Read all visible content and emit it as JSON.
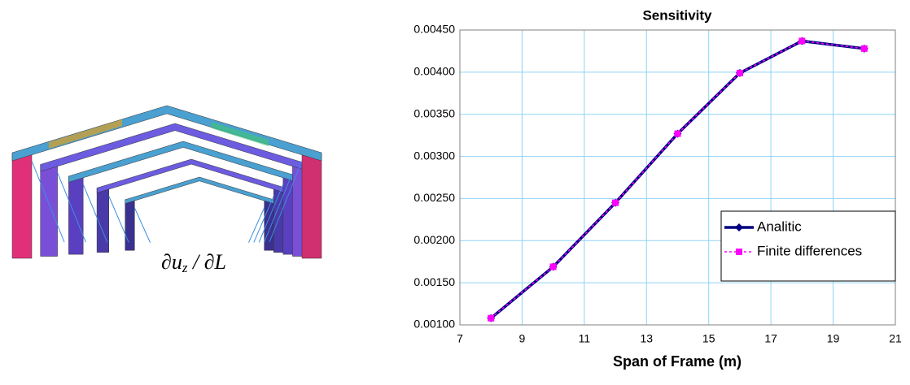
{
  "formula": {
    "main": "∂u",
    "subscript": "z",
    "rest": " / ∂L"
  },
  "chart_data": {
    "type": "line",
    "title": "Sensitivity",
    "x_label": "Span of Frame (m)",
    "x": [
      8,
      10,
      12,
      14,
      16,
      18,
      20
    ],
    "series": [
      {
        "name": "Analitic",
        "color": "#000080",
        "values": [
          0.00108,
          0.00169,
          0.00245,
          0.00327,
          0.00399,
          0.00437,
          0.00428
        ]
      },
      {
        "name": "Finite differences",
        "color": "#ff00ff",
        "values": [
          0.00108,
          0.00169,
          0.00245,
          0.00327,
          0.00399,
          0.00437,
          0.00428
        ]
      }
    ],
    "xlim": [
      7,
      21
    ],
    "xticks": [
      7,
      9,
      11,
      13,
      15,
      17,
      19,
      21
    ],
    "ylim": [
      0.001,
      0.0045
    ],
    "yticks": [
      {
        "value": 0.001,
        "label": "0.00100"
      },
      {
        "value": 0.0015,
        "label": "0.00150"
      },
      {
        "value": 0.002,
        "label": "0.00200"
      },
      {
        "value": 0.0025,
        "label": "0.00250"
      },
      {
        "value": 0.003,
        "label": "0.00300"
      },
      {
        "value": 0.0035,
        "label": "0.00350"
      },
      {
        "value": 0.004,
        "label": "0.00400"
      },
      {
        "value": 0.0045,
        "label": "0.00450"
      }
    ],
    "grid": true,
    "legend": "right"
  }
}
